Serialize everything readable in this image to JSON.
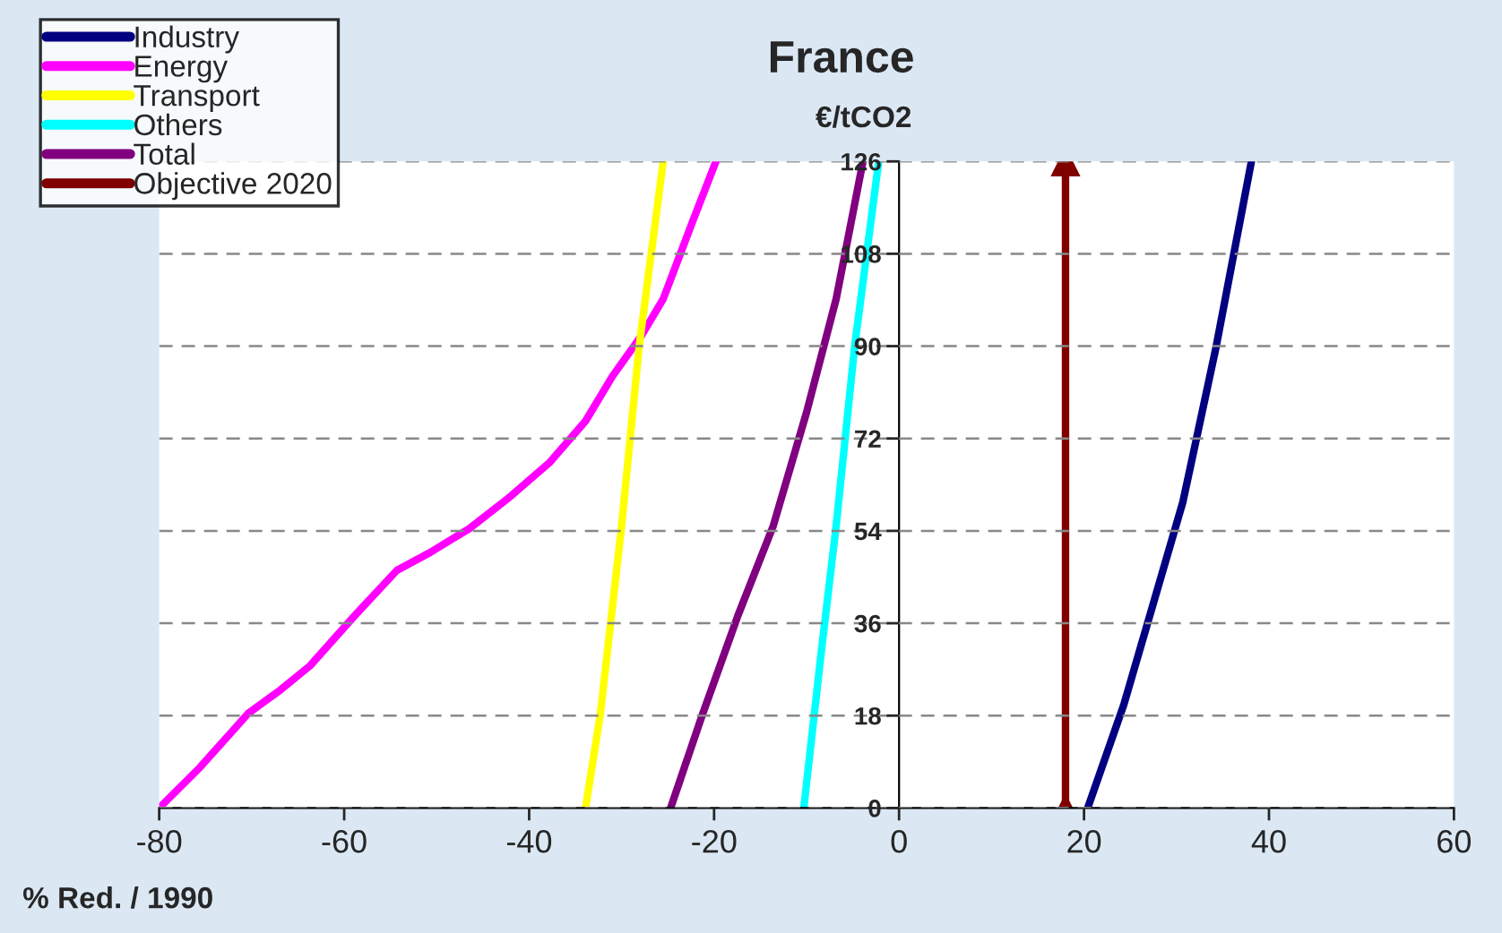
{
  "chart_data": {
    "type": "line",
    "title": "France",
    "ylabel": "€/tCO2",
    "xlabel": "% Red. / 1990",
    "xlim": [
      -80,
      60
    ],
    "xticks": [
      -80,
      -60,
      -40,
      -20,
      0,
      20,
      40,
      60
    ],
    "ylim": [
      0,
      126
    ],
    "yticks": [
      0,
      18,
      36,
      54,
      72,
      90,
      108,
      126
    ],
    "grid": "y",
    "legend": "top left",
    "line_style": "solid",
    "series": [
      {
        "name": "Industry",
        "color": "#000080",
        "x": [
          20.4,
          24.3,
          30.7,
          34.3,
          38.1
        ],
        "values": [
          0,
          20.1,
          59.7,
          90,
          126
        ]
      },
      {
        "name": "Energy",
        "color": "#ff00ff",
        "x": [
          -80,
          -75.6,
          -70.4,
          -66.9,
          -63.7,
          -58.8,
          -54.3,
          -50.7,
          -46.5,
          -42.3,
          -37.8,
          -33.9,
          -31.0,
          -27.8,
          -25.5,
          -23.9,
          -22.3,
          -19.8
        ],
        "values": [
          0,
          7.9,
          18.4,
          23,
          27.7,
          37.6,
          46.3,
          49.8,
          54.4,
          60.3,
          67.3,
          75.4,
          84.1,
          92.2,
          99.2,
          106.8,
          114.4,
          126
        ]
      },
      {
        "name": "Transport",
        "color": "#ffff00",
        "x": [
          -33.9,
          -32.3,
          -30.0,
          -28.1,
          -25.5
        ],
        "values": [
          0,
          18.3,
          55,
          90,
          126
        ]
      },
      {
        "name": "Others",
        "color": "#00ffff",
        "x": [
          -10.3,
          -8.4,
          -6.8,
          -4.8,
          -2.2
        ],
        "values": [
          0,
          30.6,
          55,
          90,
          126
        ]
      },
      {
        "name": "Total",
        "color": "#800080",
        "x": [
          -24.7,
          -21.3,
          -17.4,
          -13.6,
          -10.0,
          -6.8,
          -3.9
        ],
        "values": [
          0,
          18,
          37.6,
          55,
          77.1,
          99.2,
          126
        ]
      },
      {
        "name": "Objective 2020",
        "color": "#800000",
        "x": [
          18,
          18
        ],
        "values": [
          0,
          126
        ],
        "marker": "triangle"
      }
    ]
  }
}
